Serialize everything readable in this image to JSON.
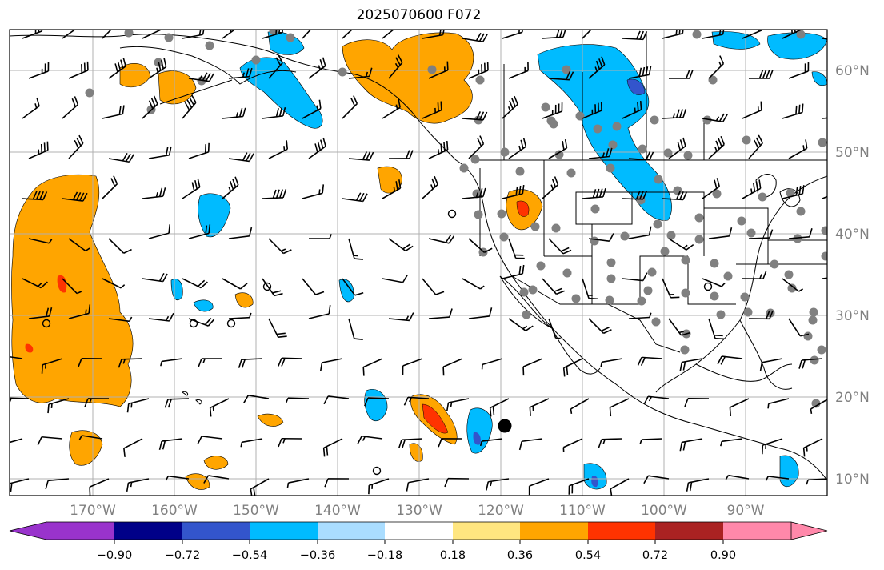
{
  "title": "2025070600 F072",
  "map": {
    "lon_range": [
      -180,
      -80
    ],
    "lat_range": [
      8,
      65
    ],
    "gridlines": true,
    "lon_labels": [
      "170°W",
      "160°W",
      "150°W",
      "140°W",
      "130°W",
      "120°W",
      "110°W",
      "100°W",
      "90°W"
    ],
    "lat_labels": [
      "60°N",
      "50°N",
      "40°N",
      "30°N",
      "20°N",
      "10°N"
    ],
    "label_color": "#808080"
  },
  "colorbar": {
    "tick_labels": [
      "−0.90",
      "−0.72",
      "−0.54",
      "−0.36",
      "−0.18",
      "0.18",
      "0.36",
      "0.54",
      "0.72",
      "0.90"
    ],
    "colors": [
      "#9933cc",
      "#000088",
      "#3355cc",
      "#00bbff",
      "#aaddff",
      "#ffffff",
      "#ffe680",
      "#ffa500",
      "#ff3300",
      "#aa2222",
      "#ff88aa"
    ]
  },
  "palette": {
    "orange": "#ffa500",
    "red": "#ff3300",
    "cyan": "#00bbff",
    "blue": "#3355cc",
    "station_dot": "#808080"
  }
}
